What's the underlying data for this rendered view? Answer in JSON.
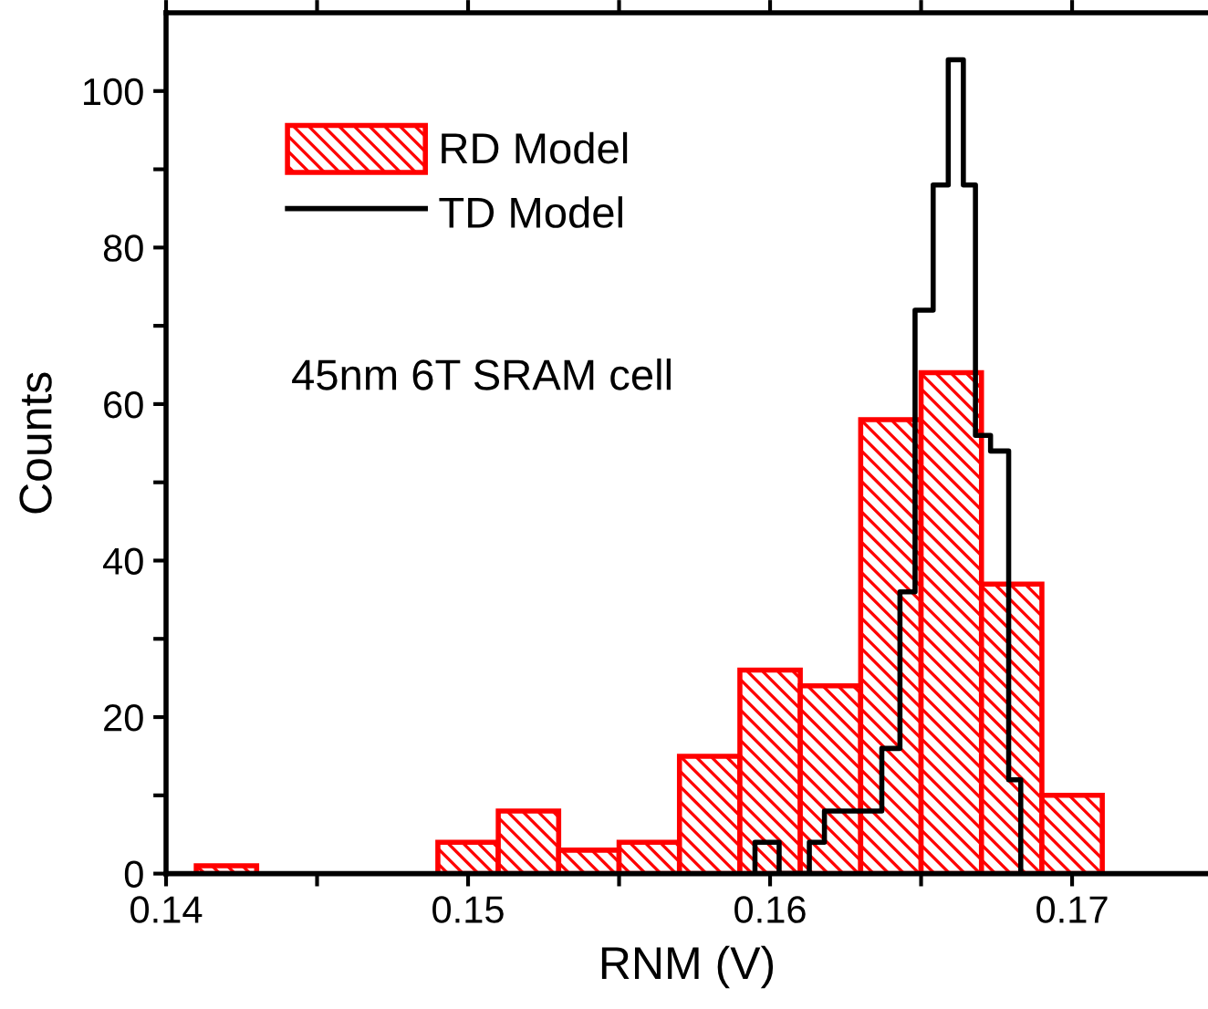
{
  "chart_data": {
    "type": "histogram",
    "xlabel": "RNM (V)",
    "ylabel": "Counts",
    "annotations": [
      "45nm 6T SRAM cell"
    ],
    "bins": [
      0.141,
      0.143,
      0.145,
      0.147,
      0.149,
      0.151,
      0.153,
      0.155,
      0.157,
      0.159,
      0.161,
      0.163,
      0.165,
      0.167,
      0.169,
      0.171
    ],
    "series": [
      {
        "name": "RD Model",
        "color": "#ff0000",
        "values": [
          1,
          0,
          0,
          0,
          4,
          8,
          3,
          4,
          15,
          26,
          24,
          58,
          64,
          37,
          10
        ]
      },
      {
        "name": "TD Model",
        "type": "step",
        "color": "#000000",
        "x": [
          0.1595,
          0.1595,
          0.1603,
          0.1613,
          0.1618,
          0.1637,
          0.1643,
          0.1648,
          0.1654,
          0.1659,
          0.1664,
          0.1668,
          0.1673,
          0.1679,
          0.1683
        ],
        "values": [
          0,
          4,
          0,
          4,
          8,
          16,
          36,
          72,
          88,
          104,
          88,
          56,
          54,
          12,
          0
        ]
      }
    ],
    "xlim": [
      0.14,
      0.1745
    ],
    "ylim": [
      0,
      110
    ],
    "xticks": [
      0.14,
      {
        "value": 0.145,
        "label": null
      },
      0.15,
      {
        "value": 0.155,
        "label": null
      },
      0.16,
      {
        "value": 0.165,
        "label": null
      },
      0.17
    ],
    "yticks": [
      0,
      {
        "value": 10,
        "label": null
      },
      20,
      {
        "value": 30,
        "label": null
      },
      40,
      {
        "value": 50,
        "label": null
      },
      60,
      {
        "value": 70,
        "label": null
      },
      80,
      {
        "value": 90,
        "label": null
      },
      100
    ],
    "legend": "top left"
  }
}
